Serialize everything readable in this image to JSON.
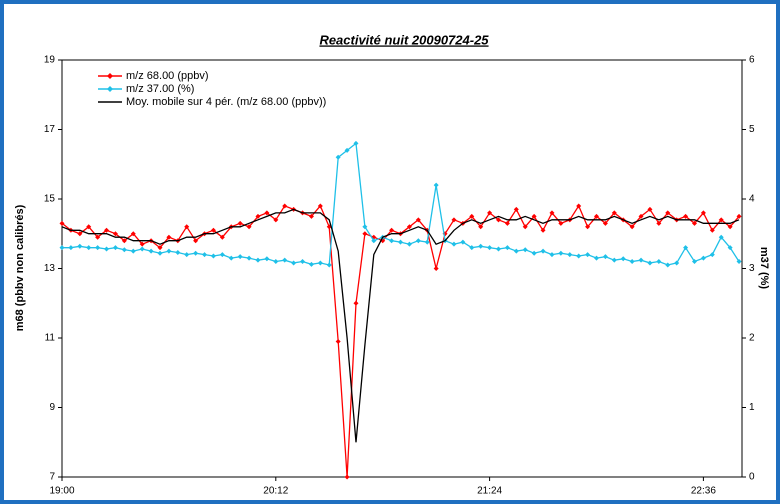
{
  "chart_data": {
    "type": "line",
    "title": "Reactivité nuit 20090724-25",
    "y_label": "m68 (pbbv non calibrés)",
    "y2_label": "m37 (%)",
    "x": [
      1140,
      1143,
      1146,
      1149,
      1152,
      1155,
      1158,
      1161,
      1164,
      1167,
      1170,
      1173,
      1176,
      1179,
      1182,
      1185,
      1188,
      1191,
      1194,
      1197,
      1200,
      1203,
      1206,
      1209,
      1212,
      1215,
      1218,
      1221,
      1224,
      1227,
      1230,
      1233,
      1236,
      1239,
      1242,
      1245,
      1248,
      1251,
      1254,
      1257,
      1260,
      1263,
      1266,
      1269,
      1272,
      1275,
      1278,
      1281,
      1284,
      1287,
      1290,
      1293,
      1296,
      1299,
      1302,
      1305,
      1308,
      1311,
      1314,
      1317,
      1320,
      1323,
      1326,
      1329,
      1332,
      1335,
      1338,
      1341,
      1344,
      1347,
      1350,
      1353,
      1356,
      1359,
      1362,
      1365,
      1368
    ],
    "xlim": [
      1140,
      1369
    ],
    "xticks": [
      {
        "value": 1140,
        "label": "19:00"
      },
      {
        "value": 1212,
        "label": "20:12"
      },
      {
        "value": 1284,
        "label": "21:24"
      },
      {
        "value": 1356,
        "label": "22:36"
      }
    ],
    "ylim": [
      7,
      19
    ],
    "yticks": [
      7,
      9,
      11,
      13,
      15,
      17,
      19
    ],
    "y2lim": [
      0,
      6
    ],
    "y2ticks": [
      0,
      1,
      2,
      3,
      4,
      5,
      6
    ],
    "legend": "upper left",
    "series": [
      {
        "name": "m/z 68.00 (ppbv)",
        "color": "#ff0000",
        "marker": true,
        "values": [
          14.3,
          14.1,
          14.0,
          14.2,
          13.9,
          14.1,
          14.0,
          13.8,
          14.0,
          13.7,
          13.8,
          13.6,
          13.9,
          13.8,
          14.2,
          13.8,
          14.0,
          14.1,
          13.9,
          14.2,
          14.3,
          14.2,
          14.5,
          14.6,
          14.4,
          14.8,
          14.7,
          14.6,
          14.5,
          14.8,
          14.2,
          10.9,
          7.0,
          12.0,
          14.0,
          13.9,
          13.8,
          14.1,
          14.0,
          14.2,
          14.4,
          14.1,
          13.0,
          14.0,
          14.4,
          14.3,
          14.5,
          14.2,
          14.6,
          14.4,
          14.3,
          14.7,
          14.2,
          14.5,
          14.1,
          14.6,
          14.3,
          14.4,
          14.8,
          14.2,
          14.5,
          14.3,
          14.6,
          14.4,
          14.2,
          14.5,
          14.7,
          14.3,
          14.6,
          14.4,
          14.5,
          14.3,
          14.6,
          14.1,
          14.4,
          14.2,
          14.5
        ]
      },
      {
        "name": "m/z 37.00 (%)",
        "color": "#1fc0e8",
        "marker": true,
        "axis": "y2",
        "values": [
          3.3,
          3.3,
          3.32,
          3.3,
          3.3,
          3.28,
          3.3,
          3.27,
          3.25,
          3.28,
          3.25,
          3.22,
          3.25,
          3.23,
          3.2,
          3.22,
          3.2,
          3.18,
          3.2,
          3.15,
          3.17,
          3.15,
          3.12,
          3.14,
          3.1,
          3.12,
          3.08,
          3.1,
          3.06,
          3.08,
          3.05,
          4.6,
          4.7,
          4.8,
          3.6,
          3.4,
          3.45,
          3.4,
          3.38,
          3.35,
          3.4,
          3.38,
          4.2,
          3.4,
          3.35,
          3.38,
          3.3,
          3.32,
          3.3,
          3.28,
          3.3,
          3.25,
          3.27,
          3.22,
          3.25,
          3.2,
          3.22,
          3.2,
          3.18,
          3.2,
          3.15,
          3.17,
          3.12,
          3.14,
          3.1,
          3.12,
          3.08,
          3.1,
          3.05,
          3.08,
          3.3,
          3.1,
          3.15,
          3.2,
          3.45,
          3.3,
          3.1
        ]
      },
      {
        "name": "Moy. mobile sur 4 pér. (m/z 68.00 (ppbv))",
        "color": "#000000",
        "marker": false,
        "values": [
          14.2,
          14.1,
          14.1,
          14.0,
          14.0,
          14.0,
          13.9,
          13.9,
          13.8,
          13.8,
          13.8,
          13.7,
          13.8,
          13.8,
          13.9,
          13.9,
          14.0,
          14.0,
          14.1,
          14.2,
          14.2,
          14.3,
          14.4,
          14.5,
          14.6,
          14.6,
          14.7,
          14.6,
          14.6,
          14.6,
          14.4,
          13.5,
          11.0,
          8.0,
          10.8,
          13.4,
          13.9,
          14.0,
          14.0,
          14.1,
          14.2,
          14.1,
          13.7,
          13.8,
          14.1,
          14.3,
          14.4,
          14.3,
          14.4,
          14.5,
          14.4,
          14.4,
          14.5,
          14.4,
          14.3,
          14.4,
          14.4,
          14.4,
          14.5,
          14.4,
          14.4,
          14.4,
          14.5,
          14.4,
          14.3,
          14.4,
          14.5,
          14.4,
          14.5,
          14.4,
          14.4,
          14.4,
          14.3,
          14.3,
          14.3,
          14.3,
          14.4
        ]
      }
    ]
  }
}
